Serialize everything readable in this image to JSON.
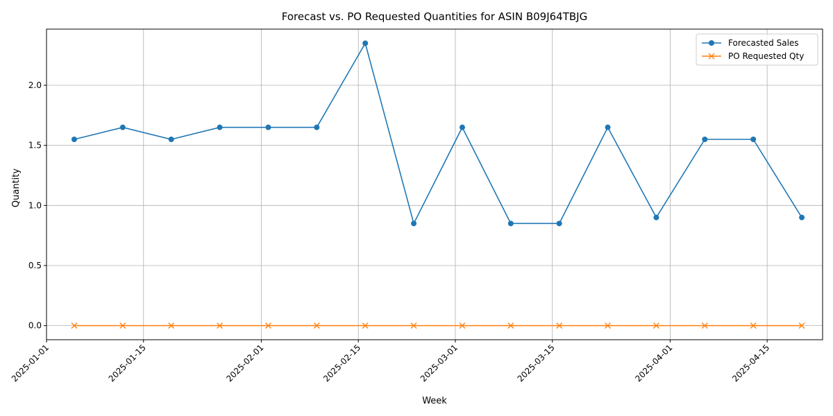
{
  "chart_data": {
    "type": "line",
    "title": "Forecast vs. PO Requested Quantities for ASIN B09J64TBJG",
    "xlabel": "Week",
    "ylabel": "Quantity",
    "x": [
      "2025-01-05",
      "2025-01-12",
      "2025-01-19",
      "2025-01-26",
      "2025-02-02",
      "2025-02-09",
      "2025-02-16",
      "2025-02-23",
      "2025-03-02",
      "2025-03-09",
      "2025-03-16",
      "2025-03-23",
      "2025-03-30",
      "2025-04-06",
      "2025-04-13",
      "2025-04-20"
    ],
    "series": [
      {
        "name": "Forecasted Sales",
        "color": "#1f77b4",
        "marker": "circle",
        "values": [
          1.55,
          1.65,
          1.55,
          1.65,
          1.65,
          1.65,
          2.35,
          0.85,
          1.65,
          0.85,
          0.85,
          1.65,
          0.9,
          1.55,
          1.55,
          0.9
        ]
      },
      {
        "name": "PO Requested Qty",
        "color": "#ff7f0e",
        "marker": "x",
        "values": [
          0,
          0,
          0,
          0,
          0,
          0,
          0,
          0,
          0,
          0,
          0,
          0,
          0,
          0,
          0,
          0
        ]
      }
    ],
    "xlim": [
      "2025-01-01",
      "2025-04-23"
    ],
    "ylim": [
      -0.1175,
      2.4675
    ],
    "xticks": [
      "2025-01-01",
      "2025-01-15",
      "2025-02-01",
      "2025-02-15",
      "2025-03-01",
      "2025-03-15",
      "2025-04-01",
      "2025-04-15"
    ],
    "yticks": [
      0.0,
      0.5,
      1.0,
      1.5,
      2.0
    ],
    "ytick_labels": [
      "0.0",
      "0.5",
      "1.0",
      "1.5",
      "2.0"
    ],
    "grid": true,
    "legend": "top-right"
  }
}
